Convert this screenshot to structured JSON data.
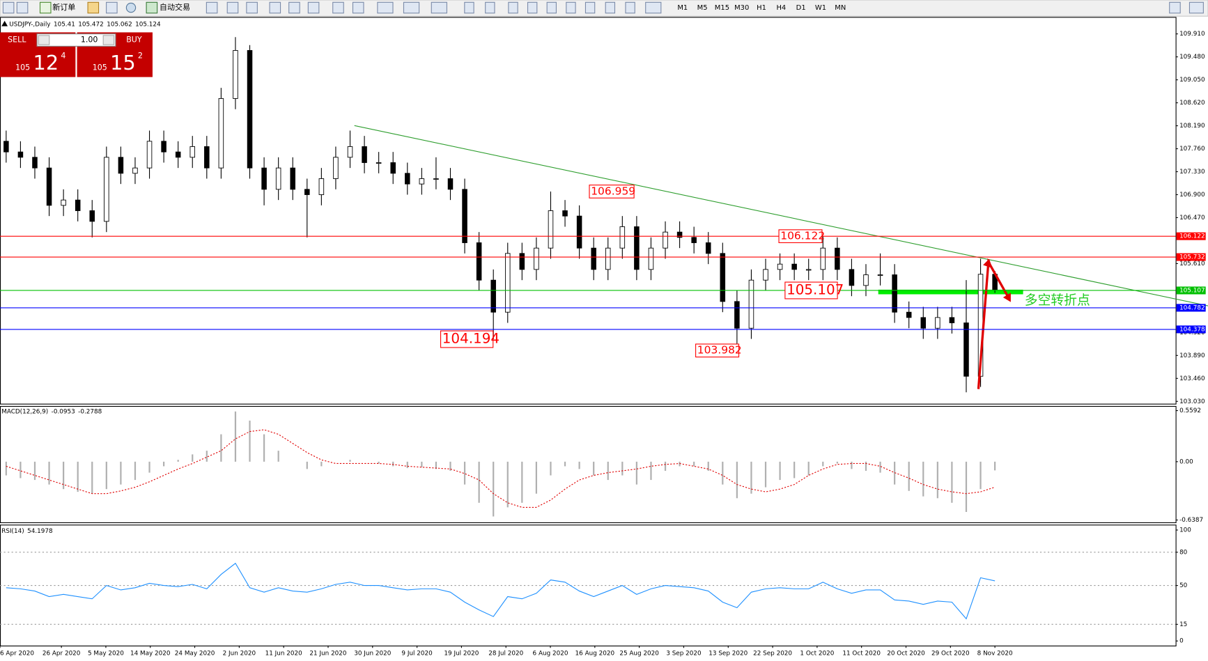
{
  "toolbar": {
    "new_order": "新订单",
    "auto_trading": "自动交易",
    "timeframes": [
      "M1",
      "M5",
      "M15",
      "M30",
      "H1",
      "H4",
      "D1",
      "W1",
      "MN"
    ]
  },
  "trade_panel": {
    "sell": "SELL",
    "buy": "BUY",
    "lots": "1.00",
    "sell_price": {
      "big": "105",
      "mid": "12",
      "small": "4"
    },
    "buy_price": {
      "big": "105",
      "mid": "15",
      "small": "2"
    }
  },
  "chart_data": [
    {
      "type": "candlestick",
      "symbol": "USDJPY-,Daily",
      "open": [
        107.9,
        107.7,
        107.6,
        107.4,
        106.7,
        106.8,
        106.6,
        106.4,
        107.6,
        107.3,
        107.4,
        107.9,
        107.7,
        107.6,
        107.8,
        107.4,
        108.7,
        109.6,
        107.4,
        107.0,
        107.4,
        107.0,
        106.9,
        107.2,
        107.6,
        107.8,
        107.5,
        107.5,
        107.3,
        107.1,
        107.2,
        107.2,
        107.0,
        106.0,
        105.3,
        104.7,
        105.8,
        105.5,
        105.9,
        106.6,
        106.5,
        105.9,
        105.5,
        105.9,
        106.3,
        105.5,
        105.9,
        106.2,
        106.1,
        106.0,
        105.8,
        104.9,
        104.4,
        105.3,
        105.5,
        105.6,
        105.5,
        105.5,
        105.9,
        105.5,
        105.2,
        105.4,
        105.4,
        104.7,
        104.6,
        104.4,
        104.6,
        104.5,
        103.5,
        105.41
      ],
      "high": [
        108.1,
        107.9,
        107.8,
        107.6,
        107.0,
        107.0,
        106.8,
        107.8,
        107.8,
        107.6,
        108.1,
        108.1,
        107.9,
        108.0,
        108.0,
        108.9,
        109.85,
        109.7,
        107.6,
        107.6,
        107.6,
        107.2,
        107.4,
        107.8,
        108.1,
        108.0,
        107.7,
        107.7,
        107.5,
        107.4,
        107.6,
        107.4,
        107.2,
        106.2,
        105.5,
        106.0,
        106.0,
        106.1,
        106.959,
        106.8,
        106.7,
        106.1,
        106.1,
        106.5,
        106.5,
        106.1,
        106.4,
        106.4,
        106.3,
        106.2,
        106.0,
        105.1,
        105.5,
        105.7,
        105.8,
        105.8,
        105.7,
        106.122,
        106.1,
        105.7,
        105.6,
        105.8,
        105.6,
        104.9,
        104.8,
        104.8,
        104.8,
        105.3,
        105.7,
        105.472
      ],
      "low": [
        107.5,
        107.4,
        107.2,
        106.5,
        106.5,
        106.4,
        106.1,
        106.2,
        107.1,
        107.1,
        107.2,
        107.5,
        107.4,
        107.4,
        107.2,
        107.2,
        108.5,
        107.2,
        106.7,
        106.8,
        106.8,
        106.1,
        106.7,
        107.0,
        107.4,
        107.3,
        107.3,
        107.1,
        106.9,
        106.9,
        107.0,
        106.8,
        105.8,
        105.1,
        104.194,
        104.5,
        105.3,
        105.3,
        105.7,
        106.3,
        105.7,
        105.3,
        105.3,
        105.7,
        105.3,
        105.3,
        105.7,
        105.9,
        105.8,
        105.6,
        104.7,
        103.982,
        104.2,
        105.1,
        105.3,
        105.3,
        105.3,
        105.3,
        105.3,
        105.0,
        105.0,
        105.2,
        104.5,
        104.4,
        104.2,
        104.2,
        104.3,
        103.2,
        103.3,
        105.062
      ],
      "close": [
        107.7,
        107.6,
        107.4,
        106.7,
        106.8,
        106.6,
        106.4,
        107.6,
        107.3,
        107.4,
        107.9,
        107.7,
        107.6,
        107.8,
        107.4,
        108.7,
        109.6,
        107.4,
        107.0,
        107.4,
        107.0,
        106.9,
        107.2,
        107.6,
        107.8,
        107.5,
        107.5,
        107.3,
        107.1,
        107.2,
        107.2,
        107.0,
        106.0,
        105.3,
        104.7,
        105.8,
        105.5,
        105.9,
        106.6,
        106.5,
        105.9,
        105.5,
        105.9,
        106.3,
        105.5,
        105.9,
        106.2,
        106.1,
        106.0,
        105.8,
        104.9,
        104.4,
        105.3,
        105.5,
        105.6,
        105.5,
        105.5,
        105.9,
        105.5,
        105.2,
        105.4,
        105.4,
        104.7,
        104.6,
        104.4,
        104.6,
        104.5,
        103.5,
        105.41,
        105.124
      ],
      "x_labels": [
        "6 Apr 2020",
        "26 Apr 2020",
        "5 May 2020",
        "14 May 2020",
        "24 May 2020",
        "2 Jun 2020",
        "11 Jun 2020",
        "21 Jun 2020",
        "30 Jun 2020",
        "9 Jul 2020",
        "19 Jul 2020",
        "28 Jul 2020",
        "6 Aug 2020",
        "16 Aug 2020",
        "25 Aug 2020",
        "3 Sep 2020",
        "13 Sep 2020",
        "22 Sep 2020",
        "1 Oct 2020",
        "11 Oct 2020",
        "20 Oct 2020",
        "29 Oct 2020",
        "8 Nov 2020"
      ],
      "ylim": [
        103.03,
        109.91
      ],
      "yticks": [
        {
          "value": 109.91,
          "label": "109.910"
        },
        {
          "value": 109.48,
          "label": "109.480"
        },
        {
          "value": 109.05,
          "label": "109.050"
        },
        {
          "value": 108.62,
          "label": "108.620"
        },
        {
          "value": 108.19,
          "label": "108.190"
        },
        {
          "value": 107.76,
          "label": "107.760"
        },
        {
          "value": 107.33,
          "label": "107.330"
        },
        {
          "value": 106.9,
          "label": "106.900"
        },
        {
          "value": 106.47,
          "label": "106.470"
        },
        {
          "value": 105.61,
          "label": "105.610"
        },
        {
          "value": 104.32,
          "label": "104.320"
        },
        {
          "value": 103.89,
          "label": "103.890"
        },
        {
          "value": 103.46,
          "label": "103.460"
        },
        {
          "value": 103.03,
          "label": "103.030"
        }
      ],
      "levels": [
        {
          "value": 106.122,
          "color": "#ff0000"
        },
        {
          "value": 105.732,
          "color": "#ff0000"
        },
        {
          "value": 105.107,
          "color": "#00c000"
        },
        {
          "value": 104.782,
          "color": "#0000ff"
        },
        {
          "value": 104.378,
          "color": "#0000ff"
        }
      ],
      "price_labels": [
        106.959,
        104.194,
        103.982,
        106.122,
        105.107
      ],
      "annotation": "多空转折点"
    },
    {
      "type": "macd",
      "title": "MACD(12,26,9)",
      "histogram": [
        -0.15,
        -0.18,
        -0.2,
        -0.25,
        -0.3,
        -0.33,
        -0.35,
        -0.3,
        -0.25,
        -0.2,
        -0.12,
        -0.05,
        0.02,
        0.08,
        0.12,
        0.3,
        0.55,
        0.45,
        0.3,
        0.12,
        0.0,
        -0.08,
        -0.05,
        0.0,
        0.02,
        0.0,
        -0.02,
        -0.05,
        -0.07,
        -0.06,
        -0.08,
        -0.1,
        -0.25,
        -0.45,
        -0.6,
        -0.5,
        -0.45,
        -0.35,
        -0.15,
        -0.05,
        -0.08,
        -0.15,
        -0.2,
        -0.15,
        -0.25,
        -0.2,
        -0.1,
        -0.05,
        -0.05,
        -0.1,
        -0.25,
        -0.4,
        -0.35,
        -0.28,
        -0.2,
        -0.18,
        -0.15,
        -0.05,
        -0.02,
        -0.08,
        -0.1,
        -0.12,
        -0.25,
        -0.32,
        -0.38,
        -0.4,
        -0.45,
        -0.55,
        -0.3,
        -0.0953
      ],
      "signal": [
        -0.05,
        -0.1,
        -0.15,
        -0.2,
        -0.25,
        -0.3,
        -0.35,
        -0.35,
        -0.32,
        -0.28,
        -0.22,
        -0.15,
        -0.08,
        -0.02,
        0.05,
        0.12,
        0.25,
        0.33,
        0.35,
        0.3,
        0.2,
        0.1,
        0.02,
        -0.02,
        -0.02,
        -0.02,
        -0.02,
        -0.03,
        -0.05,
        -0.06,
        -0.07,
        -0.08,
        -0.13,
        -0.2,
        -0.35,
        -0.45,
        -0.5,
        -0.5,
        -0.42,
        -0.3,
        -0.2,
        -0.15,
        -0.12,
        -0.1,
        -0.08,
        -0.05,
        -0.03,
        -0.02,
        -0.05,
        -0.08,
        -0.15,
        -0.25,
        -0.3,
        -0.33,
        -0.3,
        -0.25,
        -0.15,
        -0.08,
        -0.03,
        -0.02,
        -0.02,
        -0.05,
        -0.12,
        -0.18,
        -0.25,
        -0.3,
        -0.33,
        -0.35,
        -0.33,
        -0.2788
      ],
      "ylim": [
        -0.6387,
        0.5592
      ],
      "yticks": [
        0.5592,
        {
          "value": 0,
          "label": "0.00"
        },
        -0.6387
      ]
    },
    {
      "type": "rsi",
      "title": "RSI(14)",
      "values": [
        48,
        47,
        45,
        40,
        42,
        40,
        38,
        50,
        46,
        48,
        52,
        50,
        49,
        51,
        47,
        60,
        70,
        48,
        44,
        48,
        45,
        44,
        47,
        51,
        53,
        50,
        50,
        48,
        46,
        47,
        47,
        44,
        35,
        28,
        22,
        40,
        38,
        43,
        55,
        53,
        45,
        40,
        45,
        50,
        42,
        47,
        50,
        49,
        48,
        45,
        35,
        30,
        44,
        47,
        48,
        47,
        47,
        53,
        47,
        43,
        46,
        46,
        37,
        36,
        33,
        36,
        35,
        20,
        57,
        54.1978
      ],
      "ylim": [
        0,
        100
      ],
      "yticks": [
        100,
        80,
        50,
        15,
        0
      ]
    }
  ]
}
